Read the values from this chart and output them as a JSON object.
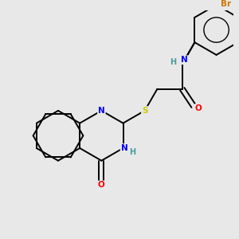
{
  "bg_color": "#e8e8e8",
  "atom_colors": {
    "N": "#0000ff",
    "O": "#ff0000",
    "S": "#cccc00",
    "Br": "#cc7700",
    "C": "#000000",
    "H": "#4a9a9a"
  },
  "bond_color": "#000000",
  "bond_width": 1.4
}
